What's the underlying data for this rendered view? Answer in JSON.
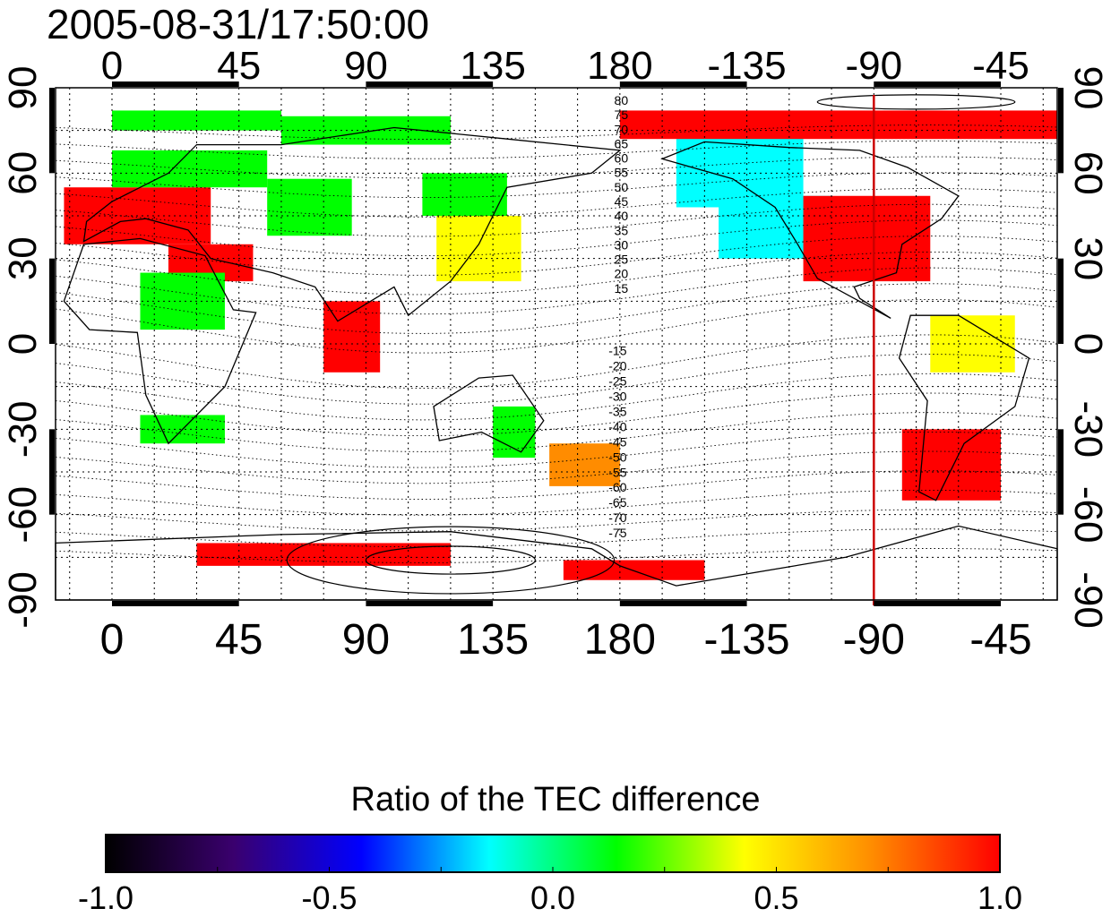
{
  "title": "2005-08-31/17:50:00",
  "map": {
    "top_lon_labels": [
      "0",
      "45",
      "90",
      "135",
      "180",
      "-135",
      "-90",
      "-45"
    ],
    "bottom_lon_labels": [
      "0",
      "45",
      "90",
      "135",
      "180",
      "-135",
      "-90",
      "-45"
    ],
    "lon_values": [
      0,
      45,
      90,
      135,
      180,
      225,
      270,
      315
    ],
    "lon_range": [
      -20,
      335
    ],
    "lat_range": [
      -90,
      90
    ],
    "left_lat_labels": [
      "90",
      "60",
      "30",
      "0",
      "-30",
      "-60",
      "-90"
    ],
    "right_lat_labels": [
      "90",
      "60",
      "30",
      "0",
      "-30",
      "-60",
      "-90"
    ],
    "lat_values": [
      90,
      60,
      30,
      0,
      -30,
      -60,
      -90
    ],
    "contour_labels_north": [
      "80",
      "75",
      "70",
      "65",
      "60",
      "55",
      "50",
      "45",
      "40",
      "35",
      "30",
      "25",
      "20",
      "15"
    ],
    "contour_labels_south": [
      "-15",
      "-20",
      "-25",
      "-30",
      "-35",
      "-40",
      "-45",
      "-50",
      "-55",
      "-60",
      "-65",
      "-70",
      "-75"
    ],
    "marker_longitude": 270,
    "colors": {
      "marker_line": "#cc0000",
      "frame": "#000000",
      "grid": "#000000"
    }
  },
  "colorbar": {
    "title": "Ratio of the TEC difference",
    "min": -1.0,
    "max": 1.0,
    "tick_labels": [
      "-1.0",
      "-0.5",
      "0.0",
      "0.5",
      "1.0"
    ],
    "tick_values": [
      -1.0,
      -0.5,
      0.0,
      0.5,
      1.0
    ],
    "colormap": [
      "#000000",
      "#3a006e",
      "#0000ff",
      "#00ffff",
      "#00ff00",
      "#ffff00",
      "#ff8c00",
      "#ff0000"
    ]
  }
}
